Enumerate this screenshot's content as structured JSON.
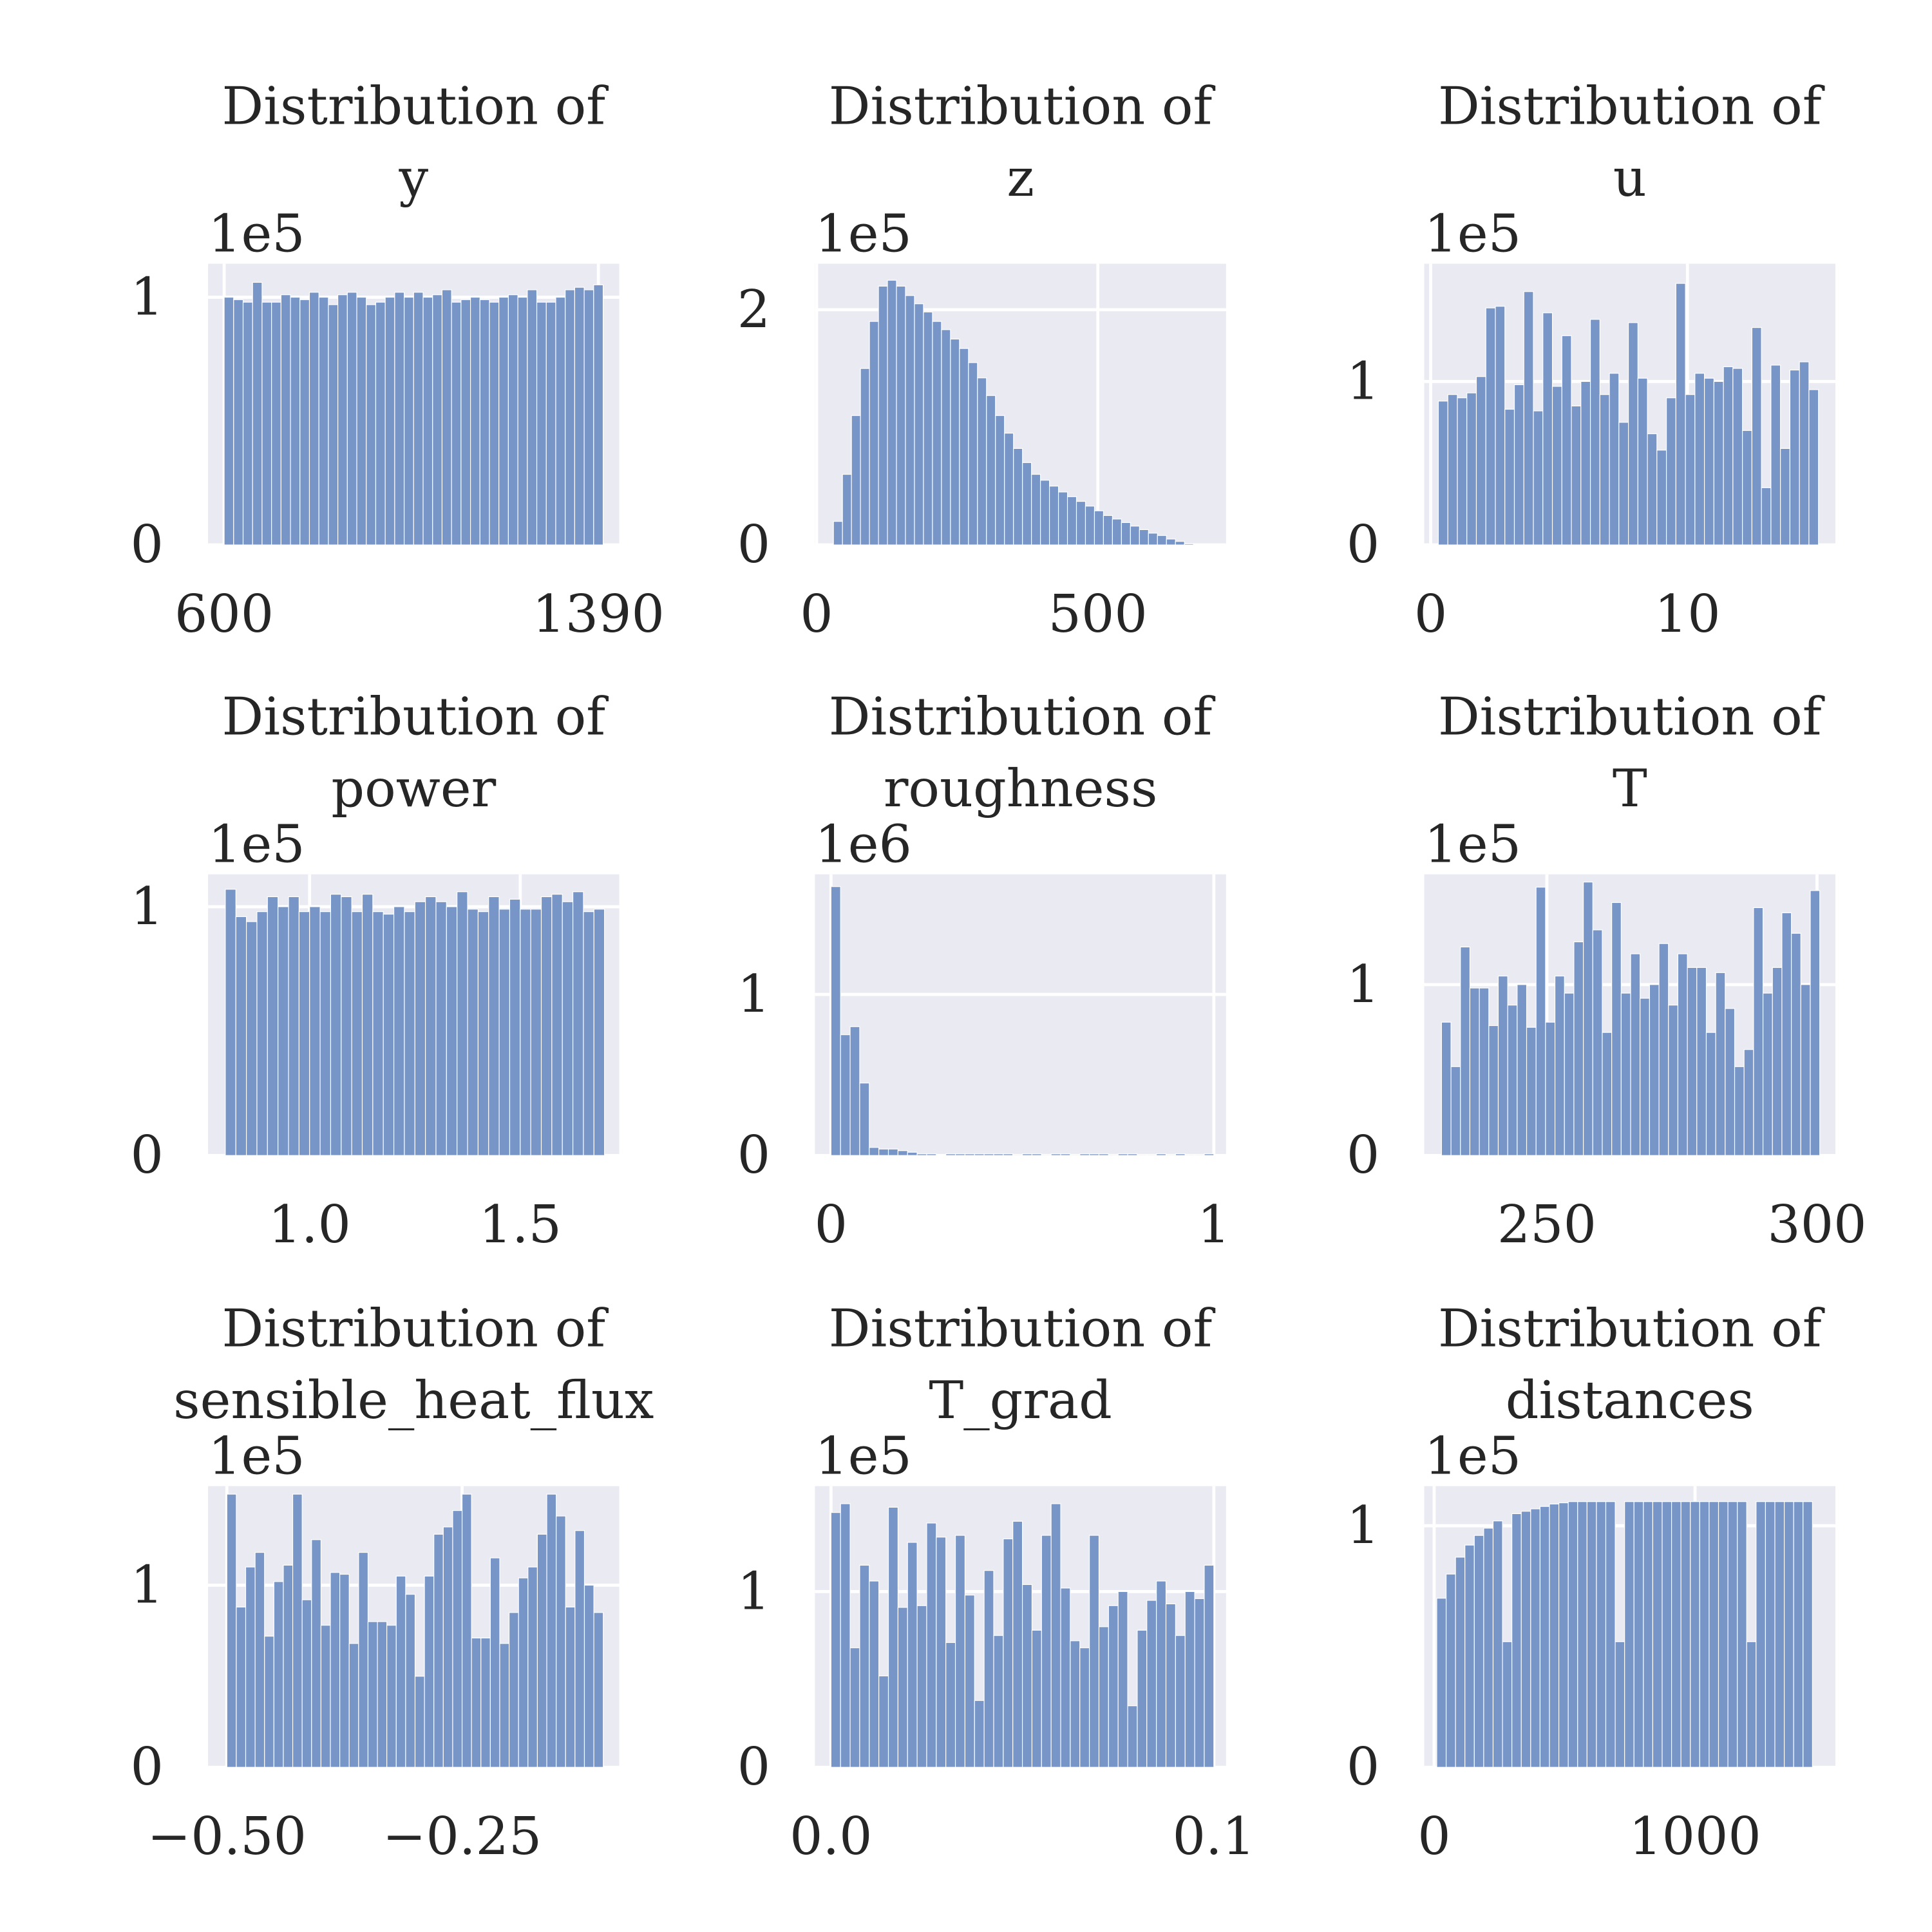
{
  "chart_data": [
    {
      "type": "histogram",
      "title": [
        "Distribution of",
        "y"
      ],
      "offset_label": "1e5",
      "color": "#7795c6",
      "grid": true,
      "bins": [
        600,
        620,
        640,
        660,
        680,
        700,
        720,
        740,
        760,
        780,
        800,
        820,
        840,
        860,
        880,
        900,
        920,
        940,
        960,
        980,
        1000,
        1020,
        1040,
        1060,
        1080,
        1100,
        1120,
        1140,
        1160,
        1180,
        1200,
        1220,
        1240,
        1260,
        1280,
        1300,
        1320,
        1340,
        1360,
        1380,
        1400
      ],
      "values": [
        1.0,
        0.99,
        0.98,
        1.06,
        0.98,
        0.98,
        1.01,
        1.0,
        0.99,
        1.02,
        1.0,
        0.97,
        1.01,
        1.02,
        1.0,
        0.97,
        0.98,
        1.0,
        1.02,
        1.0,
        1.02,
        1.0,
        1.01,
        1.03,
        0.98,
        0.99,
        1.0,
        0.99,
        0.98,
        1.0,
        1.01,
        1.0,
        1.03,
        0.98,
        0.98,
        1.0,
        1.03,
        1.04,
        1.03,
        1.05
      ],
      "xlim": [
        566,
        1434
      ],
      "ylim": [
        0,
        1.135
      ],
      "xticks": [
        600,
        1390
      ],
      "yticks": [
        0,
        1
      ]
    },
    {
      "type": "histogram",
      "title": [
        "Distribution of",
        "z"
      ],
      "offset_label": "1e5",
      "color": "#7795c6",
      "grid": true,
      "bins": [
        30,
        46,
        62,
        78,
        94,
        110,
        126,
        142,
        158,
        174,
        190,
        206,
        222,
        238,
        254,
        270,
        286,
        302,
        318,
        334,
        350,
        366,
        382,
        398,
        414,
        430,
        446,
        462,
        478,
        494,
        510,
        526,
        542,
        558,
        574,
        590,
        606,
        622,
        638,
        654,
        670
      ],
      "values": [
        0.2,
        0.6,
        1.1,
        1.5,
        1.9,
        2.2,
        2.25,
        2.2,
        2.12,
        2.05,
        1.98,
        1.9,
        1.83,
        1.75,
        1.67,
        1.55,
        1.42,
        1.27,
        1.1,
        0.95,
        0.82,
        0.7,
        0.6,
        0.55,
        0.5,
        0.45,
        0.41,
        0.37,
        0.33,
        0.29,
        0.25,
        0.22,
        0.19,
        0.16,
        0.13,
        0.1,
        0.08,
        0.05,
        0.03,
        0.01
      ],
      "xlim": [
        -3,
        728
      ],
      "ylim": [
        0,
        2.39
      ],
      "xticks": [
        0,
        500
      ],
      "yticks": [
        0,
        2
      ]
    },
    {
      "type": "histogram",
      "title": [
        "Distribution of",
        "u"
      ],
      "offset_label": "1e5",
      "color": "#7795c6",
      "grid": true,
      "bins": [
        0.3,
        0.67,
        1.04,
        1.41,
        1.78,
        2.15,
        2.52,
        2.89,
        3.26,
        3.63,
        4.0,
        4.37,
        4.74,
        5.11,
        5.48,
        5.85,
        6.22,
        6.59,
        6.96,
        7.33,
        7.7,
        8.07,
        8.44,
        8.81,
        9.18,
        9.55,
        9.92,
        10.29,
        10.66,
        11.03,
        11.4,
        11.77,
        12.14,
        12.51,
        12.88,
        13.25,
        13.62,
        13.99,
        14.36,
        14.73,
        15.1
      ],
      "values": [
        0.88,
        0.92,
        0.9,
        0.93,
        1.03,
        1.45,
        1.46,
        0.83,
        0.98,
        1.55,
        0.82,
        1.42,
        0.97,
        1.28,
        0.85,
        1.0,
        1.38,
        0.92,
        1.05,
        0.75,
        1.36,
        1.02,
        0.68,
        0.58,
        0.9,
        1.6,
        0.92,
        1.05,
        1.02,
        1.0,
        1.09,
        1.08,
        0.7,
        1.33,
        0.35,
        1.1,
        0.59,
        1.07,
        1.12,
        0.95
      ],
      "xlim": [
        -0.25,
        15.76
      ],
      "ylim": [
        0,
        1.72
      ],
      "xticks": [
        0,
        10
      ],
      "yticks": [
        0,
        1
      ]
    },
    {
      "type": "histogram",
      "title": [
        "Distribution of",
        "power"
      ],
      "offset_label": "1e5",
      "color": "#7795c6",
      "grid": true,
      "bins": [
        0.8,
        0.825,
        0.85,
        0.875,
        0.9,
        0.925,
        0.95,
        0.975,
        1.0,
        1.025,
        1.05,
        1.075,
        1.1,
        1.125,
        1.15,
        1.175,
        1.2,
        1.225,
        1.25,
        1.275,
        1.3,
        1.325,
        1.35,
        1.375,
        1.4,
        1.425,
        1.45,
        1.475,
        1.5,
        1.525,
        1.55,
        1.575,
        1.6,
        1.625,
        1.65,
        1.675,
        1.7
      ],
      "values": [
        1.07,
        0.96,
        0.94,
        0.98,
        1.04,
        1.0,
        1.04,
        0.98,
        1.0,
        0.98,
        1.05,
        1.04,
        0.98,
        1.05,
        0.98,
        0.97,
        1.0,
        0.98,
        1.02,
        1.04,
        1.02,
        1.0,
        1.06,
        0.99,
        0.98,
        1.04,
        0.99,
        1.03,
        0.99,
        0.99,
        1.04,
        1.05,
        1.02,
        1.06,
        0.98,
        0.99
      ],
      "xlim": [
        0.759,
        1.735
      ],
      "ylim": [
        0,
        1.13
      ],
      "xticks": [
        {
          "value": 1,
          "label": "1.0"
        },
        1.5
      ],
      "yticks": [
        0,
        1
      ]
    },
    {
      "type": "histogram",
      "title": [
        "Distribution of",
        "roughness"
      ],
      "offset_label": "1e6",
      "color": "#7795c6",
      "grid": true,
      "bins": [
        0,
        0.025,
        0.05,
        0.075,
        0.1,
        0.125,
        0.15,
        0.175,
        0.2,
        0.225,
        0.25,
        0.275,
        0.3,
        0.325,
        0.35,
        0.375,
        0.4,
        0.425,
        0.45,
        0.475,
        0.5,
        0.525,
        0.55,
        0.575,
        0.6,
        0.625,
        0.65,
        0.675,
        0.7,
        0.725,
        0.75,
        0.775,
        0.8,
        0.825,
        0.85,
        0.875,
        0.9,
        0.925,
        0.95,
        0.975,
        1.0
      ],
      "values": [
        1.67,
        0.75,
        0.8,
        0.45,
        0.05,
        0.04,
        0.04,
        0.03,
        0.02,
        0.01,
        0.01,
        0,
        0.01,
        0.01,
        0.01,
        0.01,
        0.01,
        0.01,
        0.01,
        0.005,
        0.01,
        0.01,
        0.005,
        0.01,
        0.01,
        0.005,
        0.01,
        0.01,
        0.01,
        0.005,
        0.01,
        0.01,
        0.005,
        0.005,
        0.01,
        0.005,
        0.01,
        0.005,
        0.005,
        0.01
      ],
      "xlim": [
        -0.042,
        1.032
      ],
      "ylim": [
        0,
        1.746
      ],
      "xticks": [
        0,
        1
      ],
      "yticks": [
        0,
        1
      ]
    },
    {
      "type": "histogram",
      "title": [
        "Distribution of",
        "T"
      ],
      "offset_label": "1e5",
      "color": "#7795c6",
      "grid": true,
      "bins": [
        230.5,
        232.25,
        234,
        235.75,
        237.5,
        239.25,
        241,
        242.75,
        244.5,
        246.25,
        248,
        249.75,
        251.5,
        253.25,
        255,
        256.75,
        258.5,
        260.25,
        262,
        263.75,
        265.5,
        267.25,
        269,
        270.75,
        272.5,
        274.25,
        276,
        277.75,
        279.5,
        281.25,
        283,
        284.75,
        286.5,
        288.25,
        290,
        291.75,
        293.5,
        295.25,
        297,
        298.75,
        300.5
      ],
      "values": [
        0.78,
        0.52,
        1.22,
        0.98,
        0.98,
        0.76,
        1.05,
        0.88,
        1.0,
        0.75,
        1.57,
        0.78,
        1.05,
        0.95,
        1.25,
        1.6,
        1.32,
        0.72,
        1.48,
        0.95,
        1.18,
        0.92,
        1.0,
        1.24,
        0.88,
        1.18,
        1.1,
        1.1,
        0.72,
        1.07,
        0.86,
        0.52,
        0.62,
        1.45,
        0.95,
        1.1,
        1.42,
        1.3,
        1.0,
        1.55
      ],
      "xlim": [
        227.3,
        303.4
      ],
      "ylim": [
        0,
        1.645
      ],
      "xticks": [
        250,
        300
      ],
      "yticks": [
        0,
        1
      ]
    },
    {
      "type": "histogram",
      "title": [
        "Distribution of",
        "sensible_heat_flux"
      ],
      "offset_label": "1e5",
      "color": "#7795c6",
      "grid": true,
      "bins": [
        -0.5,
        -0.49,
        -0.48,
        -0.47,
        -0.46,
        -0.45,
        -0.44,
        -0.43,
        -0.42,
        -0.41,
        -0.4,
        -0.39,
        -0.38,
        -0.37,
        -0.36,
        -0.35,
        -0.34,
        -0.33,
        -0.32,
        -0.31,
        -0.3,
        -0.29,
        -0.28,
        -0.27,
        -0.26,
        -0.25,
        -0.24,
        -0.23,
        -0.22,
        -0.21,
        -0.2,
        -0.19,
        -0.18,
        -0.17,
        -0.16,
        -0.15,
        -0.14,
        -0.13,
        -0.12,
        -0.11,
        -0.1
      ],
      "values": [
        1.5,
        0.88,
        1.1,
        1.18,
        0.72,
        1.02,
        1.11,
        1.5,
        0.92,
        1.25,
        0.78,
        1.07,
        1.06,
        0.68,
        1.18,
        0.8,
        0.8,
        0.78,
        1.05,
        0.95,
        0.5,
        1.05,
        1.28,
        1.32,
        1.41,
        1.5,
        0.71,
        0.71,
        1.15,
        0.68,
        0.85,
        1.04,
        1.1,
        1.28,
        1.5,
        1.38,
        0.88,
        1.3,
        1.0,
        0.85
      ],
      "xlim": [
        -0.52,
        -0.083
      ],
      "ylim": [
        0,
        1.544
      ],
      "xticks": [
        {
          "value": -0.5,
          "label": "−0.50"
        },
        {
          "value": -0.25,
          "label": "−0.25"
        }
      ],
      "yticks": [
        0,
        1
      ]
    },
    {
      "type": "histogram",
      "title": [
        "Distribution of",
        "T_grad"
      ],
      "offset_label": "1e5",
      "color": "#7795c6",
      "grid": true,
      "bins": [
        0,
        0.0025,
        0.005,
        0.0075,
        0.01,
        0.0125,
        0.015,
        0.0175,
        0.02,
        0.0225,
        0.025,
        0.0275,
        0.03,
        0.0325,
        0.035,
        0.0375,
        0.04,
        0.0425,
        0.045,
        0.0475,
        0.05,
        0.0525,
        0.055,
        0.0575,
        0.06,
        0.0625,
        0.065,
        0.0675,
        0.07,
        0.0725,
        0.075,
        0.0775,
        0.08,
        0.0825,
        0.085,
        0.0875,
        0.09,
        0.0925,
        0.095,
        0.0975,
        0.1
      ],
      "values": [
        1.45,
        1.5,
        0.68,
        1.15,
        1.06,
        0.52,
        1.48,
        0.91,
        1.28,
        0.92,
        1.39,
        1.31,
        0.71,
        1.32,
        0.98,
        0.38,
        1.12,
        0.75,
        1.3,
        1.4,
        1.04,
        0.78,
        1.32,
        1.5,
        1.02,
        0.72,
        0.68,
        1.32,
        0.8,
        0.92,
        1.0,
        0.35,
        0.78,
        0.95,
        1.06,
        0.93,
        0.75,
        1.0,
        0.96,
        1.15
      ],
      "xlim": [
        -0.0042,
        0.1032
      ],
      "ylim": [
        0,
        1.6
      ],
      "xticks": [
        {
          "value": 0,
          "label": "0.0"
        },
        0.1
      ],
      "yticks": [
        0,
        1
      ]
    },
    {
      "type": "histogram",
      "title": [
        "Distribution of",
        "distances"
      ],
      "offset_label": "1e5",
      "color": "#7795c6",
      "grid": true,
      "bins": [
        10,
        46,
        82,
        118,
        154,
        190,
        226,
        262,
        298,
        334,
        370,
        406,
        442,
        478,
        514,
        550,
        586,
        622,
        658,
        694,
        730,
        766,
        802,
        838,
        874,
        910,
        946,
        982,
        1018,
        1054,
        1090,
        1126,
        1162,
        1198,
        1234,
        1270,
        1306,
        1342,
        1378,
        1414,
        1450
      ],
      "values": [
        0.7,
        0.8,
        0.87,
        0.92,
        0.96,
        0.99,
        1.02,
        0.52,
        1.05,
        1.06,
        1.07,
        1.08,
        1.09,
        1.095,
        1.1,
        1.1,
        1.1,
        1.1,
        1.1,
        0.52,
        1.1,
        1.1,
        1.1,
        1.1,
        1.1,
        1.1,
        1.1,
        1.1,
        1.1,
        1.1,
        1.1,
        1.1,
        1.1,
        0.52,
        1.1,
        1.1,
        1.1,
        1.1,
        1.1,
        1.1
      ],
      "xlim": [
        -38,
        1538
      ],
      "ylim": [
        0,
        1.164
      ],
      "xticks": [
        0,
        1000
      ],
      "yticks": [
        0,
        1
      ]
    }
  ]
}
